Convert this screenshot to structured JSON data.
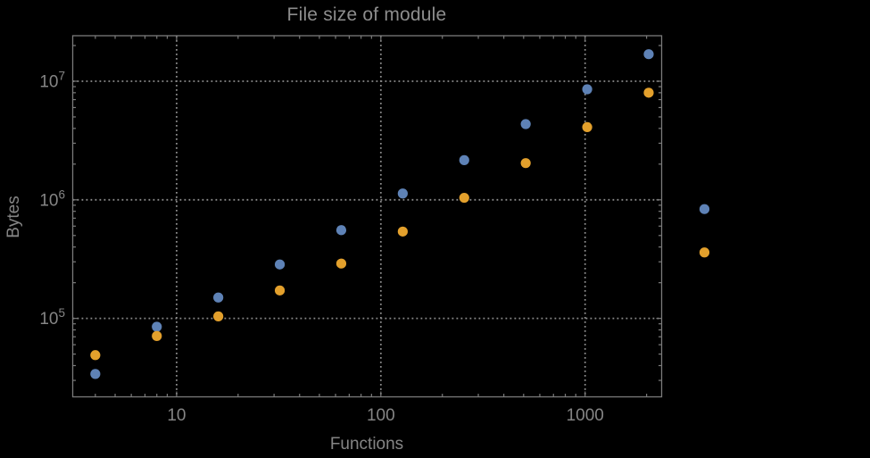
{
  "chart_data": {
    "type": "scatter",
    "title": "File size of module",
    "xlabel": "Functions",
    "ylabel": "Bytes",
    "x_scale": "log",
    "y_scale": "log",
    "xlim": [
      3.1,
      2370
    ],
    "ylim": [
      21800,
      24200000
    ],
    "grid": "dotted",
    "legend_position": "none",
    "marker_size_px": 11.2,
    "x": [
      4,
      8,
      16,
      32,
      64,
      128,
      256,
      512,
      1024,
      2048,
      3840
    ],
    "series": [
      {
        "name": "blue-series",
        "color": "#5e82b6",
        "values": [
          34000,
          85000,
          150000,
          285000,
          555000,
          1130000,
          2160000,
          4350000,
          8550000,
          16900000,
          835000
        ]
      },
      {
        "name": "orange-series",
        "color": "#e3a02c",
        "values": [
          49000,
          71000,
          104000,
          172000,
          290000,
          540000,
          1040000,
          2040000,
          4100000,
          8000000,
          360000
        ]
      }
    ],
    "x_ticks": [
      {
        "value": 10,
        "label": "10"
      },
      {
        "value": 100,
        "label": "100"
      },
      {
        "value": 1000,
        "label": "1000"
      }
    ],
    "y_ticks": [
      {
        "value": 100000,
        "mantissa": "10",
        "exponent": "5"
      },
      {
        "value": 1000000,
        "mantissa": "10",
        "exponent": "6"
      },
      {
        "value": 10000000,
        "mantissa": "10",
        "exponent": "7"
      }
    ],
    "minor_tick_multiples": [
      2,
      3,
      4,
      5,
      6,
      7,
      8,
      9
    ],
    "colors": {
      "background": "#000000",
      "frame": "#7a7a7a",
      "grid": "#8c8c8c",
      "text": "#858585",
      "title_text": "#8d8d8d"
    }
  }
}
